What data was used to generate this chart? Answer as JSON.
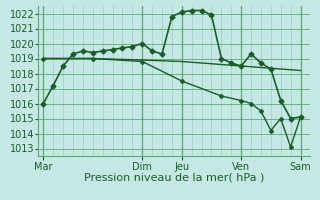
{
  "background_color": "#c5e8e5",
  "grid_color": "#5aaa70",
  "line_color": "#1a5c2a",
  "xlabel": "Pression niveau de la mer( hPa )",
  "ylim": [
    1012.5,
    1022.5
  ],
  "yticks": [
    1013,
    1014,
    1015,
    1016,
    1017,
    1018,
    1019,
    1020,
    1021,
    1022
  ],
  "day_labels": [
    "Mar",
    "Dim",
    "Jeu",
    "Ven",
    "Sam"
  ],
  "day_positions": [
    0,
    10,
    14,
    20,
    26
  ],
  "xlim": [
    -0.5,
    27
  ],
  "line1_x": [
    0,
    1,
    2,
    3,
    4,
    5,
    6,
    7,
    8,
    9,
    10,
    11,
    12,
    13,
    14,
    15,
    16,
    17,
    18,
    19,
    20,
    21,
    22,
    23,
    24,
    25,
    26
  ],
  "line1_y": [
    1016.0,
    1017.2,
    1018.5,
    1019.3,
    1019.5,
    1019.4,
    1019.5,
    1019.6,
    1019.7,
    1019.8,
    1020.0,
    1019.5,
    1019.3,
    1021.8,
    1022.1,
    1022.2,
    1022.2,
    1021.9,
    1019.0,
    1018.7,
    1018.5,
    1019.3,
    1018.7,
    1018.3,
    1016.2,
    1015.0,
    1015.1
  ],
  "line2_x": [
    0,
    5,
    10,
    14,
    20,
    26
  ],
  "line2_y": [
    1019.0,
    1019.0,
    1018.9,
    1018.8,
    1018.5,
    1018.2
  ],
  "line3_x": [
    0,
    5,
    10,
    14,
    18,
    20,
    21,
    22,
    23,
    24,
    25,
    26
  ],
  "line3_y": [
    1019.0,
    1019.0,
    1018.8,
    1017.5,
    1016.5,
    1016.2,
    1016.0,
    1015.5,
    1014.2,
    1015.0,
    1013.1,
    1015.1
  ],
  "ylabel_fontsize": 7,
  "xlabel_fontsize": 8,
  "tick_fontsize": 7
}
